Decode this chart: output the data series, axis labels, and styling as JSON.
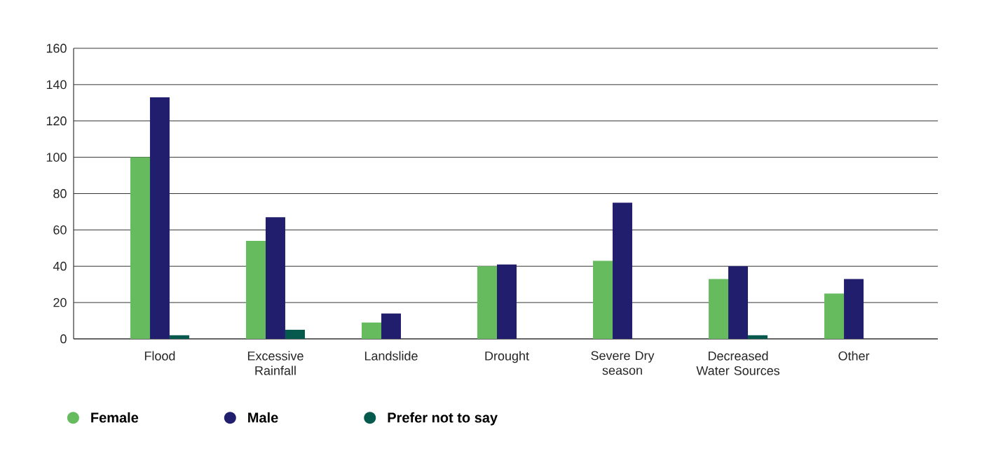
{
  "chart_data": {
    "type": "bar",
    "categories": [
      "Flood",
      "Excessive Rainfall",
      "Landslide",
      "Drought",
      "Severe Dry season",
      "Decreased Water Sources",
      "Other"
    ],
    "series": [
      {
        "name": "Female",
        "color": "#66bb5f",
        "values": [
          100,
          54,
          9,
          40,
          43,
          33,
          25
        ]
      },
      {
        "name": "Male",
        "color": "#221e6e",
        "values": [
          133,
          67,
          14,
          41,
          75,
          40,
          33
        ]
      },
      {
        "name": "Prefer not to say",
        "color": "#065a4d",
        "values": [
          2,
          5,
          0,
          0,
          0,
          2,
          0
        ]
      }
    ],
    "ylim": [
      0,
      160
    ],
    "yticks": [
      0,
      20,
      40,
      60,
      80,
      100,
      120,
      140,
      160
    ],
    "grid": "y",
    "legend": "bottom left"
  }
}
